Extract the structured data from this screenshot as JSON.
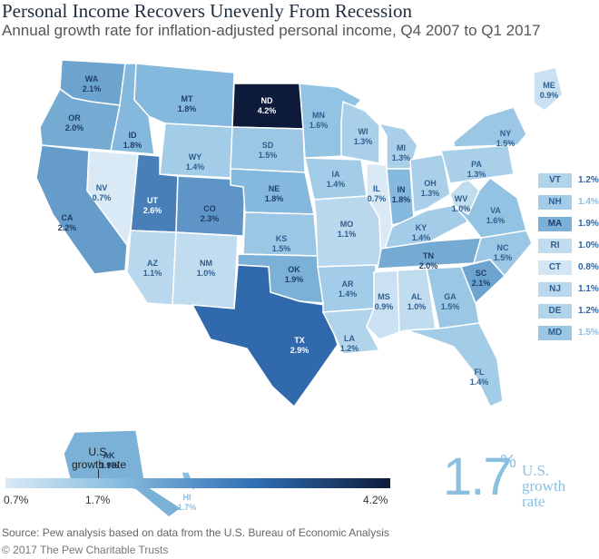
{
  "header": {
    "title": "Personal Income Recovers Unevenly From Recession",
    "subtitle": "Annual growth rate for inflation-adjusted personal income, Q4 2007 to Q1 2017"
  },
  "colors": {
    "scale_low": "#d9e9f6",
    "scale_mid": "#8bbfe0",
    "scale_high": "#3a7fbd",
    "scale_max": "#0d1a3a",
    "text_dark": "#1f2d3d"
  },
  "states": [
    {
      "abbr": "WA",
      "value": "2.1%",
      "rate": 2.1
    },
    {
      "abbr": "OR",
      "value": "2.0%",
      "rate": 2.0
    },
    {
      "abbr": "CA",
      "value": "2.2%",
      "rate": 2.2
    },
    {
      "abbr": "NV",
      "value": "0.7%",
      "rate": 0.7
    },
    {
      "abbr": "ID",
      "value": "1.8%",
      "rate": 1.8
    },
    {
      "abbr": "MT",
      "value": "1.8%",
      "rate": 1.8
    },
    {
      "abbr": "WY",
      "value": "1.4%",
      "rate": 1.4
    },
    {
      "abbr": "UT",
      "value": "2.6%",
      "rate": 2.6
    },
    {
      "abbr": "AZ",
      "value": "1.1%",
      "rate": 1.1
    },
    {
      "abbr": "CO",
      "value": "2.3%",
      "rate": 2.3
    },
    {
      "abbr": "NM",
      "value": "1.0%",
      "rate": 1.0
    },
    {
      "abbr": "ND",
      "value": "4.2%",
      "rate": 4.2
    },
    {
      "abbr": "SD",
      "value": "1.5%",
      "rate": 1.5
    },
    {
      "abbr": "NE",
      "value": "1.8%",
      "rate": 1.8
    },
    {
      "abbr": "KS",
      "value": "1.5%",
      "rate": 1.5
    },
    {
      "abbr": "OK",
      "value": "1.9%",
      "rate": 1.9
    },
    {
      "abbr": "TX",
      "value": "2.9%",
      "rate": 2.9
    },
    {
      "abbr": "MN",
      "value": "1.6%",
      "rate": 1.6
    },
    {
      "abbr": "IA",
      "value": "1.4%",
      "rate": 1.4
    },
    {
      "abbr": "MO",
      "value": "1.1%",
      "rate": 1.1
    },
    {
      "abbr": "AR",
      "value": "1.4%",
      "rate": 1.4
    },
    {
      "abbr": "LA",
      "value": "1.2%",
      "rate": 1.2
    },
    {
      "abbr": "WI",
      "value": "1.3%",
      "rate": 1.3
    },
    {
      "abbr": "IL",
      "value": "0.7%",
      "rate": 0.7
    },
    {
      "abbr": "MI",
      "value": "1.3%",
      "rate": 1.3
    },
    {
      "abbr": "IN",
      "value": "1.8%",
      "rate": 1.8
    },
    {
      "abbr": "OH",
      "value": "1.3%",
      "rate": 1.3
    },
    {
      "abbr": "KY",
      "value": "1.4%",
      "rate": 1.4
    },
    {
      "abbr": "TN",
      "value": "2.0%",
      "rate": 2.0
    },
    {
      "abbr": "MS",
      "value": "0.9%",
      "rate": 0.9
    },
    {
      "abbr": "AL",
      "value": "1.0%",
      "rate": 1.0
    },
    {
      "abbr": "GA",
      "value": "1.5%",
      "rate": 1.5
    },
    {
      "abbr": "FL",
      "value": "1.4%",
      "rate": 1.4
    },
    {
      "abbr": "SC",
      "value": "2.1%",
      "rate": 2.1
    },
    {
      "abbr": "NC",
      "value": "1.5%",
      "rate": 1.5
    },
    {
      "abbr": "VA",
      "value": "1.6%",
      "rate": 1.6
    },
    {
      "abbr": "WV",
      "value": "1.0%",
      "rate": 1.0
    },
    {
      "abbr": "PA",
      "value": "1.3%",
      "rate": 1.3
    },
    {
      "abbr": "NY",
      "value": "1.5%",
      "rate": 1.5
    },
    {
      "abbr": "ME",
      "value": "0.9%",
      "rate": 0.9
    },
    {
      "abbr": "AK",
      "value": "1.9%",
      "rate": 1.9
    },
    {
      "abbr": "HI",
      "value": "1.7%",
      "rate": 1.7
    }
  ],
  "side_states": [
    {
      "abbr": "VT",
      "value": "1.2%",
      "rate": 1.2
    },
    {
      "abbr": "NH",
      "value": "1.4%",
      "rate": 1.4
    },
    {
      "abbr": "MA",
      "value": "1.9%",
      "rate": 1.9
    },
    {
      "abbr": "RI",
      "value": "1.0%",
      "rate": 1.0
    },
    {
      "abbr": "CT",
      "value": "0.8%",
      "rate": 0.8
    },
    {
      "abbr": "NJ",
      "value": "1.1%",
      "rate": 1.1
    },
    {
      "abbr": "DE",
      "value": "1.2%",
      "rate": 1.2
    },
    {
      "abbr": "MD",
      "value": "1.5%",
      "rate": 1.5
    }
  ],
  "legend": {
    "min_label": "0.7%",
    "mid_label": "1.7%",
    "max_label": "4.2%",
    "us_label": "U.S. growth rate"
  },
  "us_rate": {
    "value": "1.7",
    "percent_sign": "%",
    "label": "U.S. growth rate"
  },
  "footer": {
    "source": "Source: Pew analysis based on data from the U.S. Bureau of Economic Analysis",
    "copyright": "© 2017 The Pew Charitable Trusts"
  }
}
